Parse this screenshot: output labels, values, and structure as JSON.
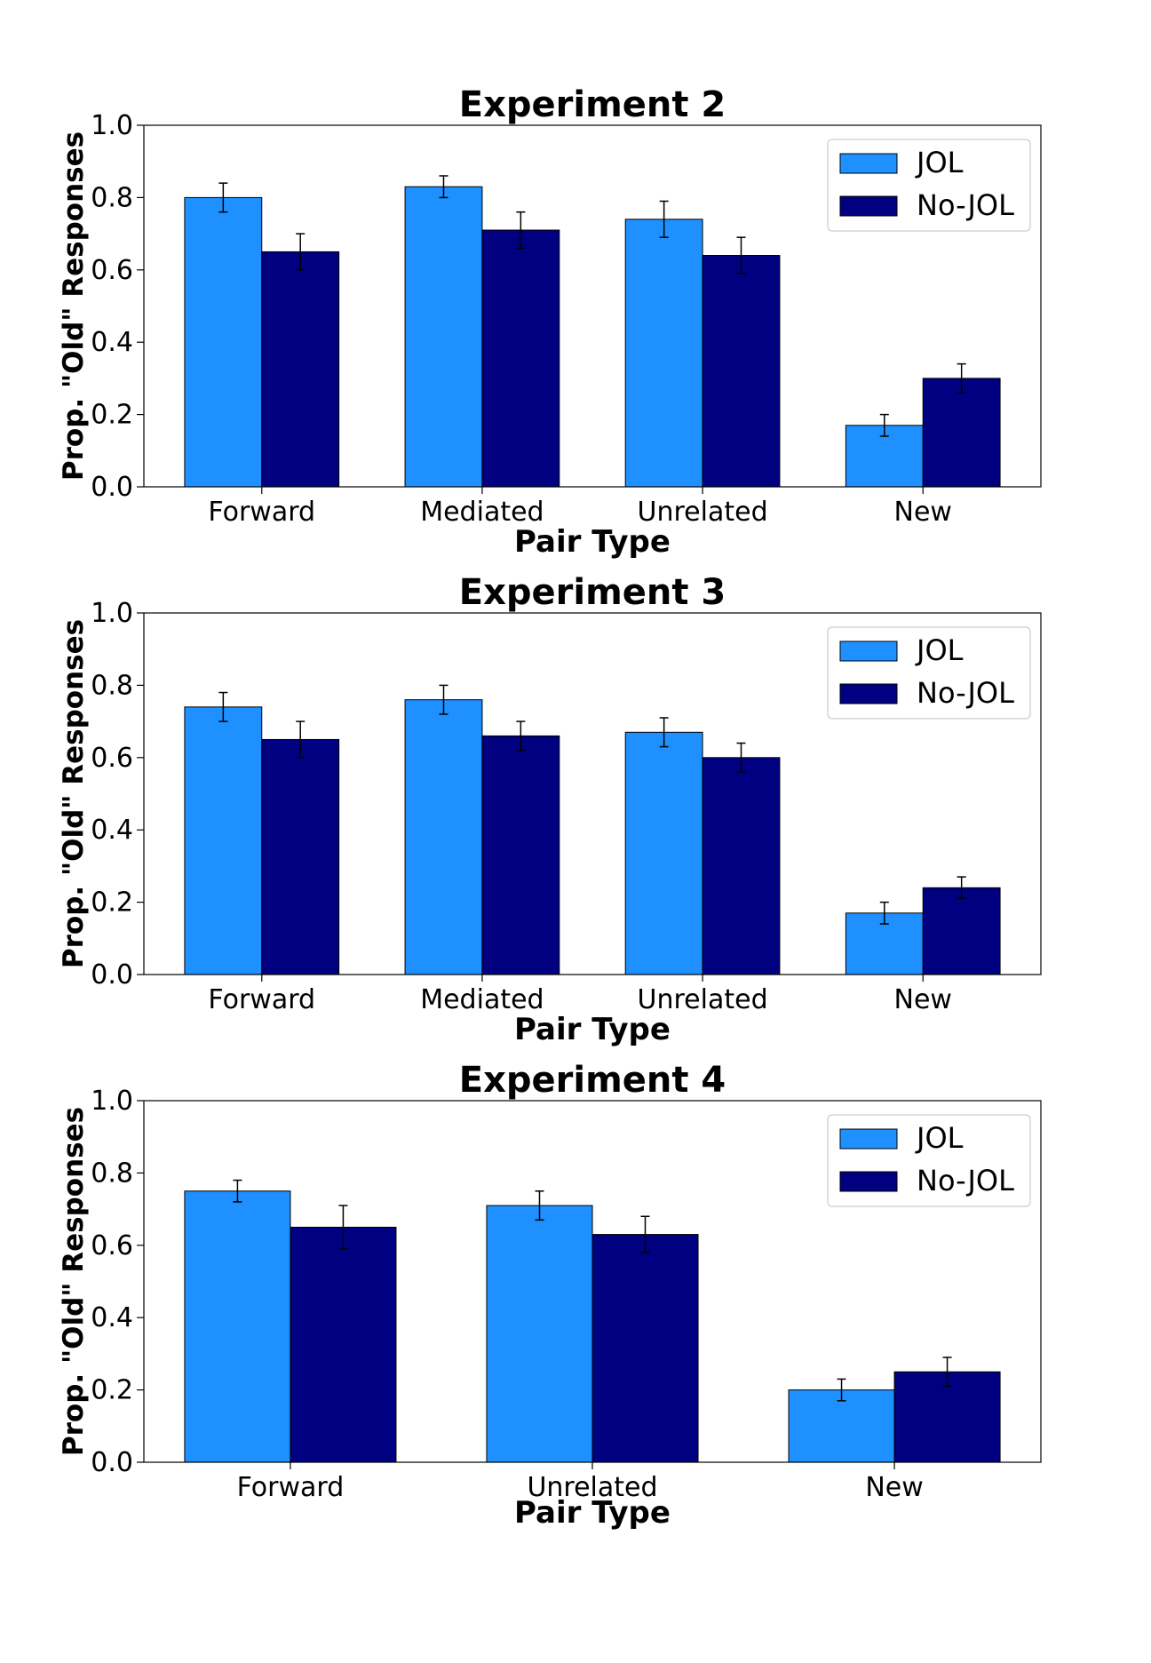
{
  "colors": {
    "JOL": "#1e90ff",
    "No-JOL": "#000080"
  },
  "chart_data": [
    {
      "type": "bar",
      "title": "Experiment 2",
      "xlabel": "Pair Type",
      "ylabel": "Prop. \"Old\" Responses",
      "ylim": [
        0,
        1.0
      ],
      "yticks": [
        "0.0",
        "0.2",
        "0.4",
        "0.6",
        "0.8",
        "1.0"
      ],
      "categories": [
        "Forward",
        "Mediated",
        "Unrelated",
        "New"
      ],
      "series": [
        {
          "name": "JOL",
          "values": [
            0.8,
            0.83,
            0.74,
            0.17
          ],
          "errors": [
            0.04,
            0.03,
            0.05,
            0.03
          ]
        },
        {
          "name": "No-JOL",
          "values": [
            0.65,
            0.71,
            0.64,
            0.3
          ],
          "errors": [
            0.05,
            0.05,
            0.05,
            0.04
          ]
        }
      ],
      "legend": "top-right",
      "grid": false
    },
    {
      "type": "bar",
      "title": "Experiment 3",
      "xlabel": "Pair Type",
      "ylabel": "Prop. \"Old\" Responses",
      "ylim": [
        0,
        1.0
      ],
      "yticks": [
        "0.0",
        "0.2",
        "0.4",
        "0.6",
        "0.8",
        "1.0"
      ],
      "categories": [
        "Forward",
        "Mediated",
        "Unrelated",
        "New"
      ],
      "series": [
        {
          "name": "JOL",
          "values": [
            0.74,
            0.76,
            0.67,
            0.17
          ],
          "errors": [
            0.04,
            0.04,
            0.04,
            0.03
          ]
        },
        {
          "name": "No-JOL",
          "values": [
            0.65,
            0.66,
            0.6,
            0.24
          ],
          "errors": [
            0.05,
            0.04,
            0.04,
            0.03
          ]
        }
      ],
      "legend": "top-right",
      "grid": false
    },
    {
      "type": "bar",
      "title": "Experiment 4",
      "xlabel": "Pair Type",
      "ylabel": "Prop. \"Old\" Responses",
      "ylim": [
        0,
        1.0
      ],
      "yticks": [
        "0.0",
        "0.2",
        "0.4",
        "0.6",
        "0.8",
        "1.0"
      ],
      "categories": [
        "Forward",
        "Unrelated",
        "New"
      ],
      "series": [
        {
          "name": "JOL",
          "values": [
            0.75,
            0.71,
            0.2
          ],
          "errors": [
            0.03,
            0.04,
            0.03
          ]
        },
        {
          "name": "No-JOL",
          "values": [
            0.65,
            0.63,
            0.25
          ],
          "errors": [
            0.06,
            0.05,
            0.04
          ]
        }
      ],
      "legend": "top-right",
      "grid": false
    }
  ]
}
